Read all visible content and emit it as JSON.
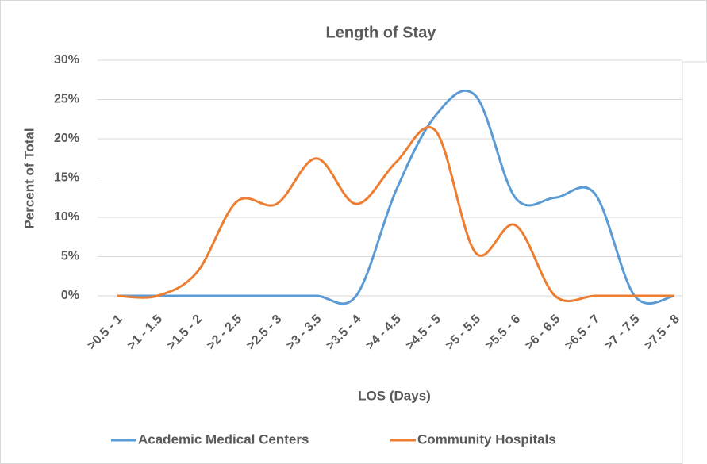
{
  "chart_data": {
    "type": "line",
    "title": "Length of Stay",
    "x_label": "LOS (Days)",
    "y_label": "Percent of Total",
    "categories": [
      ">0.5 - 1",
      ">1 - 1.5",
      ">1.5 - 2",
      ">2 - 2.5",
      ">2.5 - 3",
      ">3 - 3.5",
      ">3.5 - 4",
      ">4 - 4.5",
      ">4.5 - 5",
      ">5 - 5.5",
      ">5.5 - 6",
      ">6 - 6.5",
      ">6.5 - 7",
      ">7 - 7.5",
      ">7.5 - 8"
    ],
    "series": [
      {
        "name": "Academic Medical Centers",
        "color": "#5b9bd5",
        "values": [
          0,
          0,
          0,
          0,
          0,
          0,
          0,
          13.4,
          23,
          25.5,
          12.5,
          12.5,
          13,
          0,
          0
        ]
      },
      {
        "name": "Community Hospitals",
        "color": "#ed7d31",
        "values": [
          0,
          0,
          3,
          12,
          11.7,
          17.5,
          11.7,
          17,
          21,
          5.5,
          9,
          0,
          0,
          0,
          0
        ]
      }
    ],
    "ylim": [
      0,
      30
    ],
    "yticks": [
      {
        "value": 0,
        "label": "0%"
      },
      {
        "value": 5,
        "label": "5%"
      },
      {
        "value": 10,
        "label": "10%"
      },
      {
        "value": 15,
        "label": "15%"
      },
      {
        "value": 20,
        "label": "20%"
      },
      {
        "value": 25,
        "label": "25%"
      },
      {
        "value": 30,
        "label": "30%"
      }
    ],
    "grid": true,
    "legend": "bottom"
  }
}
